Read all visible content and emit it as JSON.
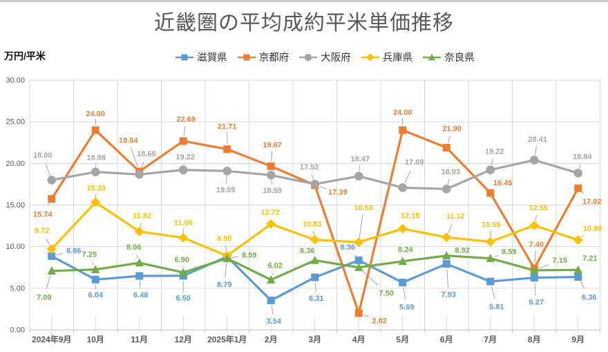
{
  "chart_data": {
    "type": "line",
    "title": "近畿圏の平均成約平米単価推移",
    "ylabel": "万円/平米",
    "xlabel": "",
    "ylim": [
      0,
      30
    ],
    "ytick_step": 5,
    "ytick_labels": [
      "30.00",
      "25.00",
      "20.00",
      "15.00",
      "10.00",
      "5.00",
      "0.00"
    ],
    "grid": true,
    "legend_position": "top",
    "data_labels": true,
    "data_label_format": "0.00",
    "categories": [
      "2024年9月",
      "10月",
      "11月",
      "12月",
      "2025年1月",
      "2月",
      "3月",
      "4月",
      "5月",
      "6月",
      "7月",
      "8月",
      "9月"
    ],
    "series": [
      {
        "id": "shiga",
        "name": "滋賀県",
        "color": "#5B9BD5",
        "marker": "square",
        "values": [
          8.86,
          6.04,
          6.48,
          6.5,
          8.79,
          3.54,
          6.31,
          8.36,
          5.69,
          7.93,
          5.81,
          6.27,
          6.36
        ]
      },
      {
        "id": "kyoto",
        "name": "京都府",
        "color": "#ED7D31",
        "marker": "square",
        "values": [
          15.74,
          24.0,
          19.04,
          22.69,
          21.71,
          19.67,
          17.39,
          2.02,
          24.0,
          21.9,
          16.45,
          7.4,
          17.02
        ]
      },
      {
        "id": "osaka",
        "name": "大阪府",
        "color": "#A5A5A5",
        "marker": "circle",
        "values": [
          18.0,
          18.98,
          18.68,
          19.22,
          19.09,
          18.59,
          17.52,
          18.47,
          17.09,
          16.93,
          19.22,
          20.41,
          18.84
        ]
      },
      {
        "id": "hyogo",
        "name": "兵庫県",
        "color": "#FFC000",
        "marker": "diamond",
        "values": [
          9.72,
          15.33,
          11.82,
          11.06,
          8.9,
          12.72,
          10.83,
          10.53,
          12.15,
          11.12,
          10.59,
          12.55,
          10.8
        ]
      },
      {
        "id": "nara",
        "name": "奈良県",
        "color": "#70AD47",
        "marker": "triangle",
        "values": [
          7.09,
          7.25,
          8.06,
          6.9,
          8.59,
          6.02,
          8.36,
          7.5,
          8.24,
          8.92,
          8.59,
          7.15,
          7.21
        ]
      }
    ]
  }
}
